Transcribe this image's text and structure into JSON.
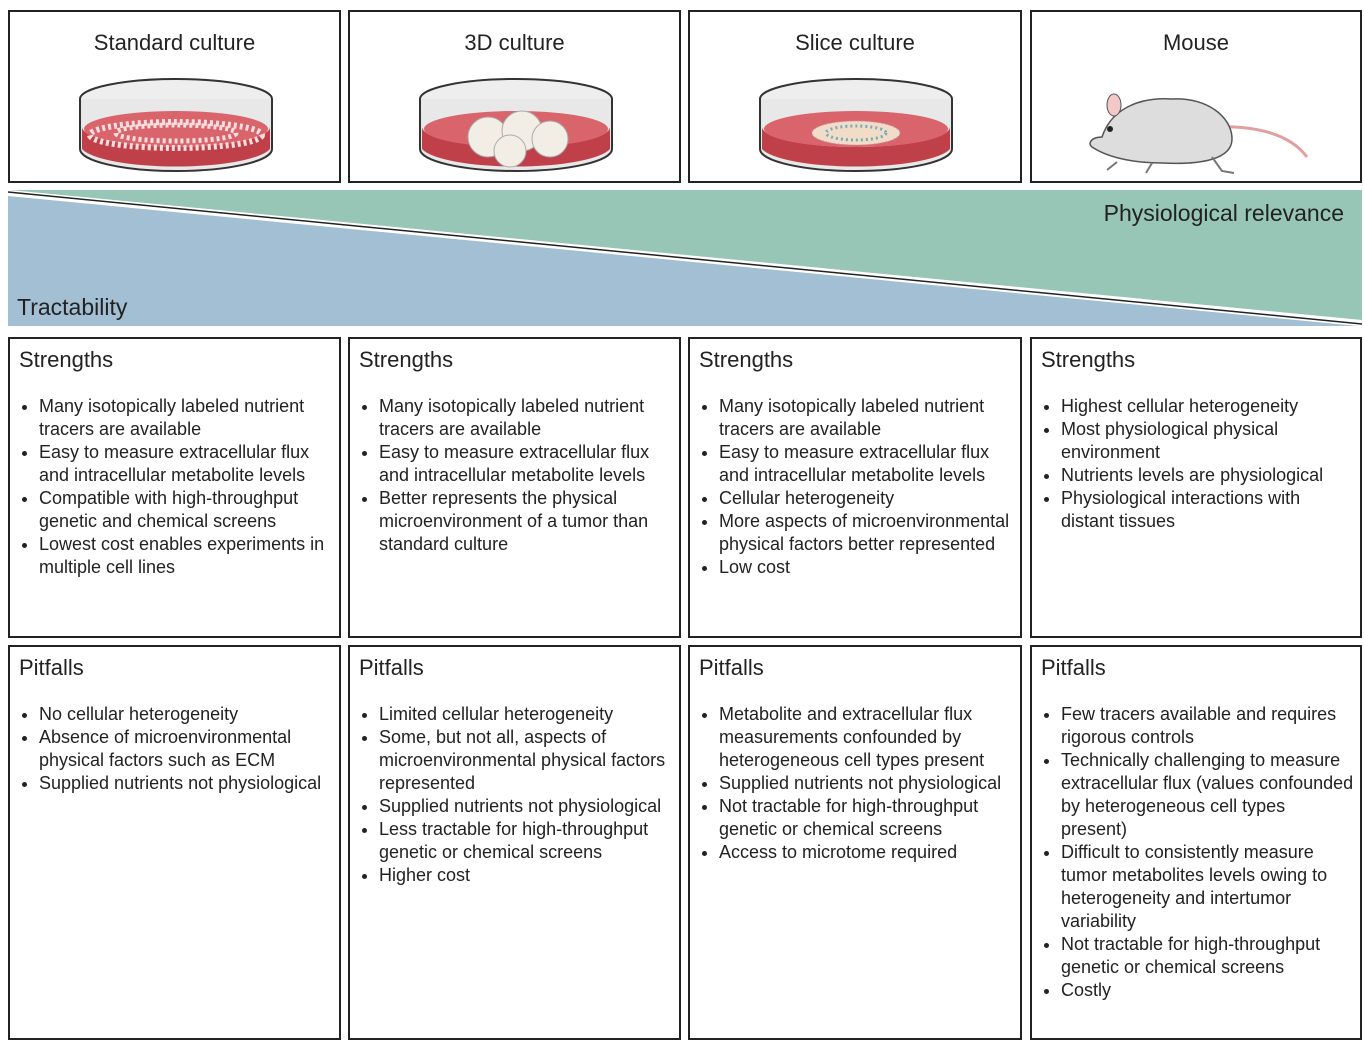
{
  "columns": [
    {
      "title": "Standard culture",
      "strengths": [
        "Many isotopically labeled nutrient tracers are available",
        "Easy to measure extracellular flux and intracellular metabolite levels",
        "Compatible with high-throughput genetic and chemical screens",
        "Lowest cost enables experiments in multiple cell lines"
      ],
      "pitfalls": [
        "No cellular heterogeneity",
        "Absence of microenvironmental physical factors such as ECM",
        "Supplied nutrients not physiological"
      ]
    },
    {
      "title": "3D culture",
      "strengths": [
        "Many isotopically labeled nutrient tracers are available",
        "Easy to measure extracellular flux and intracellular metabolite levels",
        "Better represents the physical microenvironment of a tumor than standard culture"
      ],
      "pitfalls": [
        "Limited cellular heterogeneity",
        "Some, but not all, aspects of microenvironmental physical factors represented",
        "Supplied nutrients not physiological",
        "Less tractable for high-throughput genetic or chemical screens",
        "Higher cost"
      ]
    },
    {
      "title": "Slice culture",
      "strengths": [
        "Many isotopically labeled nutrient tracers are available",
        "Easy to measure extracellular flux and intracellular metabolite levels",
        "Cellular heterogeneity",
        "More aspects of microenvironmental physical factors better represented",
        "Low cost"
      ],
      "pitfalls": [
        "Metabolite and extracellular flux measurements confounded by heterogeneous cell types present",
        "Supplied nutrients not physiological",
        "Not tractable for high-throughput genetic or chemical screens",
        "Access to microtome required"
      ]
    },
    {
      "title": "Mouse",
      "strengths": [
        "Highest cellular heterogeneity",
        "Most physiological physical environment",
        "Nutrients levels are physiological",
        "Physiological interactions with distant tissues"
      ],
      "pitfalls": [
        "Few tracers available and requires rigorous controls",
        "Technically challenging to measure extracellular flux (values confounded by heterogeneous cell types present)",
        "Difficult to consistently measure tumor metabolites levels owing to heterogeneity and intertumor variability",
        "Not tractable for high-throughput genetic or chemical screens",
        "Costly"
      ]
    }
  ],
  "banner": {
    "top_label": "Physiological relevance",
    "bottom_label": "Tractability"
  },
  "section_labels": {
    "strengths": "Strengths",
    "pitfalls": "Pitfalls"
  }
}
